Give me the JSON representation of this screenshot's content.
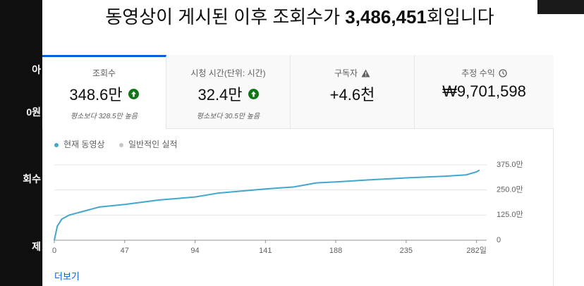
{
  "sidebar": [
    "아",
    "0원",
    "회수",
    "제"
  ],
  "header": {
    "title_prefix": "동영상이 게시된 이후 조회수가 ",
    "title_number": "3,486,451",
    "title_suffix": "회입니다"
  },
  "cards": [
    {
      "label": "조회수",
      "value": "348.6만",
      "note": "평소보다 328.5만 높음"
    },
    {
      "label": "시청 시간(단위: 시간)",
      "value": "32.4만",
      "note": "평소보다 30.5만 높음"
    },
    {
      "label": "구독자",
      "value": "+4.6천"
    },
    {
      "label": "추정 수익",
      "value": "₩9,701,598"
    }
  ],
  "chart_data": {
    "type": "line",
    "x": [
      0,
      2,
      5,
      10,
      20,
      30,
      47,
      70,
      94,
      110,
      141,
      160,
      175,
      188,
      210,
      235,
      260,
      275,
      282,
      284
    ],
    "series": [
      {
        "name": "현재 동영상",
        "color": "#41a7cc",
        "values": [
          0,
          70,
          105,
          125,
          145,
          165,
          178,
          200,
          215,
          235,
          255,
          265,
          285,
          290,
          300,
          310,
          318,
          325,
          340,
          349
        ]
      },
      {
        "name": "일반적인 실적",
        "color": "#c6c6c6",
        "values": [
          null,
          null,
          null,
          null,
          null,
          null,
          null,
          null,
          null,
          null,
          null,
          null,
          null,
          null,
          null,
          null,
          null,
          null,
          null,
          null
        ]
      }
    ],
    "xlim": [
      0,
      285
    ],
    "xticks": [
      0,
      47,
      94,
      141,
      188,
      235,
      {
        "value": 282,
        "label": "282일"
      }
    ],
    "ylim": [
      0,
      375
    ],
    "yticks": [
      0,
      {
        "value": 125,
        "label": "125.0만"
      },
      {
        "value": 250,
        "label": "250.0만"
      },
      {
        "value": 375,
        "label": "375.0만"
      }
    ],
    "grid": true
  },
  "more": "더보기"
}
